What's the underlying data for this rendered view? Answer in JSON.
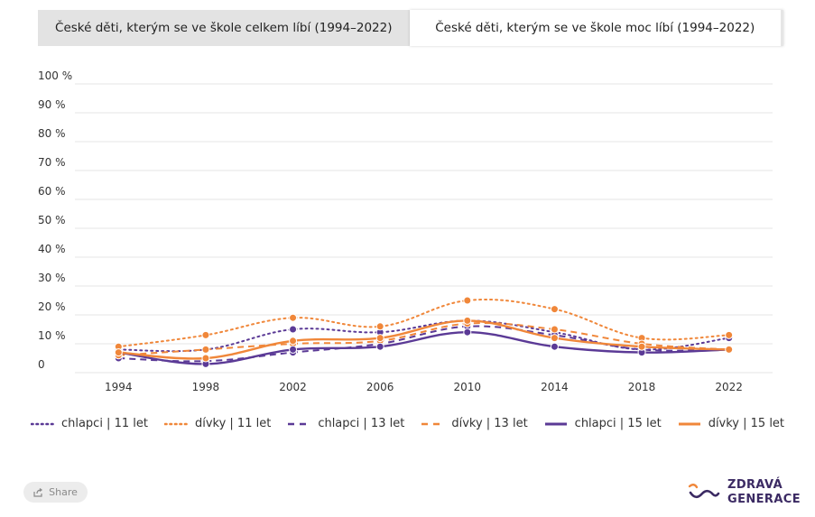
{
  "tabs": [
    {
      "label": "České děti, kterým se ve škole celkem líbí (1994–2022)",
      "active": false
    },
    {
      "label": "České děti, kterým se ve škole moc líbí (1994–2022)",
      "active": true
    }
  ],
  "colors": {
    "purple": "#5b3a96",
    "orange": "#f0873a",
    "grid": "#e6e6e6"
  },
  "chart_data": {
    "type": "line",
    "x": [
      1994,
      1998,
      2002,
      2006,
      2010,
      2014,
      2018,
      2022
    ],
    "ylim": [
      0,
      100
    ],
    "yticks": [
      "0",
      "10 %",
      "20 %",
      "30 %",
      "40 %",
      "50 %",
      "60 %",
      "70 %",
      "80 %",
      "90 %",
      "100 %"
    ],
    "series": [
      {
        "name": "chlapci | 11 let",
        "color": "#5b3a96",
        "dash": "dotted",
        "values": [
          8,
          8,
          15,
          14,
          18,
          14,
          8,
          12
        ]
      },
      {
        "name": "dívky | 11 let",
        "color": "#f0873a",
        "dash": "dotted",
        "values": [
          9,
          13,
          19,
          16,
          25,
          22,
          12,
          13
        ]
      },
      {
        "name": "chlapci | 13 let",
        "color": "#5b3a96",
        "dash": "dashed",
        "values": [
          5,
          4,
          7,
          10,
          16,
          13,
          8,
          8
        ]
      },
      {
        "name": "dívky | 13 let",
        "color": "#f0873a",
        "dash": "dashed",
        "values": [
          6,
          8,
          10,
          11,
          17,
          15,
          10,
          8
        ]
      },
      {
        "name": "chlapci | 15 let",
        "color": "#5b3a96",
        "dash": "solid",
        "values": [
          7,
          3,
          8,
          9,
          14,
          9,
          7,
          8
        ]
      },
      {
        "name": "dívky | 15 let",
        "color": "#f0873a",
        "dash": "solid",
        "values": [
          7,
          5,
          11,
          12,
          18,
          12,
          9,
          8
        ]
      }
    ]
  },
  "share": {
    "label": "Share",
    "icon": "share-icon"
  },
  "logo": {
    "line1": "ZDRAVÁ",
    "line2": "GENERACE",
    "icon": "wave-logo-icon"
  }
}
